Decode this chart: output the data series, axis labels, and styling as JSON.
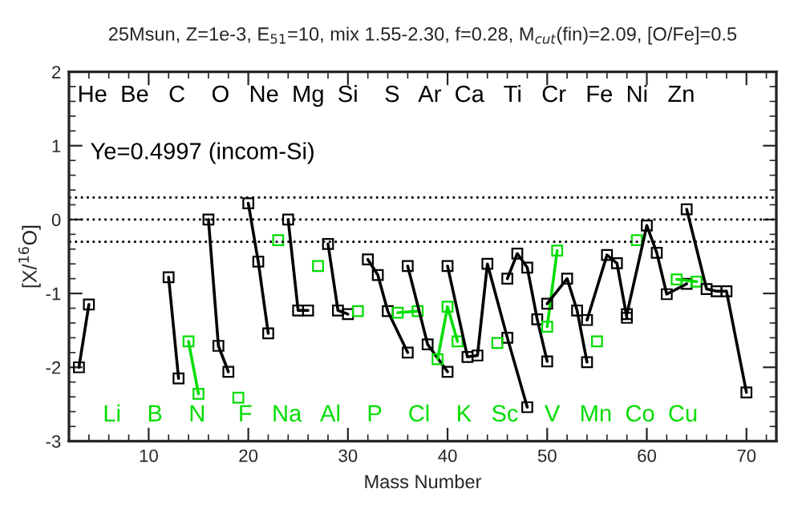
{
  "chart_data": {
    "type": "line",
    "title": "25Msun, Z=1e-3, E$_{51}$=10, mix 1.55-2.30, f=0.28, M$_{cut}$(fin)=2.09, [O/Fe]=0.5",
    "xlabel": "Mass Number",
    "ylabel": "[X/$^{16}$O]",
    "xlim": [
      2,
      73
    ],
    "xticks": [
      10,
      20,
      30,
      40,
      50,
      60,
      70
    ],
    "ylim": [
      -3,
      2
    ],
    "yticks": [
      -3,
      -2,
      -1,
      0,
      1,
      2
    ],
    "marker": "square",
    "line_style": "solid",
    "grid": false,
    "legend": false,
    "ref_lines": [
      {
        "axis": "y",
        "value": 0.3,
        "color": "#000000",
        "line_style": "dotted"
      },
      {
        "axis": "y",
        "value": 0,
        "color": "#000000",
        "line_style": "dotted"
      },
      {
        "axis": "y",
        "value": -0.3,
        "color": "#000000",
        "line_style": "dotted"
      }
    ],
    "series": [
      {
        "color": "#000000",
        "x": [
          3,
          4
        ],
        "values": [
          -2.0,
          -1.15
        ]
      },
      {
        "color": "#000000",
        "x": [
          12,
          13
        ],
        "values": [
          -0.78,
          -2.15
        ]
      },
      {
        "color": "#00dd00",
        "x": [
          14,
          15
        ],
        "values": [
          -1.65,
          -2.36
        ]
      },
      {
        "color": "#000000",
        "x": [
          16,
          17,
          18
        ],
        "values": [
          0.0,
          -1.71,
          -2.06
        ]
      },
      {
        "color": "#00dd00",
        "x": [
          19
        ],
        "values": [
          -2.41
        ]
      },
      {
        "color": "#000000",
        "x": [
          20,
          21,
          22
        ],
        "values": [
          0.22,
          -0.57,
          -1.54
        ]
      },
      {
        "color": "#00dd00",
        "x": [
          23
        ],
        "values": [
          -0.28
        ]
      },
      {
        "color": "#000000",
        "x": [
          24,
          25,
          26
        ],
        "values": [
          0.0,
          -1.23,
          -1.23
        ]
      },
      {
        "color": "#00dd00",
        "x": [
          27
        ],
        "values": [
          -0.63
        ]
      },
      {
        "color": "#000000",
        "x": [
          28,
          29,
          30
        ],
        "values": [
          -0.33,
          -1.23,
          -1.28
        ]
      },
      {
        "color": "#00dd00",
        "x": [
          31
        ],
        "values": [
          -1.24
        ]
      },
      {
        "color": "#000000",
        "x": [
          32,
          33,
          34,
          36
        ],
        "values": [
          -0.54,
          -0.75,
          -1.24,
          -1.8
        ]
      },
      {
        "color": "#00dd00",
        "x": [
          35,
          37
        ],
        "values": [
          -1.26,
          -1.24
        ]
      },
      {
        "color": "#000000",
        "x": [
          36,
          38,
          40
        ],
        "values": [
          -0.63,
          -1.69,
          -2.06
        ]
      },
      {
        "color": "#00dd00",
        "x": [
          39,
          40,
          41
        ],
        "values": [
          -1.89,
          -1.18,
          -1.65
        ]
      },
      {
        "color": "#000000",
        "x": [
          40,
          42,
          43,
          44,
          46,
          48
        ],
        "values": [
          -0.63,
          -1.86,
          -1.84,
          -0.6,
          -1.6,
          -2.54
        ]
      },
      {
        "color": "#00dd00",
        "x": [
          45
        ],
        "values": [
          -1.67
        ]
      },
      {
        "color": "#000000",
        "x": [
          46,
          47,
          48,
          49,
          50
        ],
        "values": [
          -0.8,
          -0.46,
          -0.65,
          -1.35,
          -1.92
        ]
      },
      {
        "color": "#00dd00",
        "x": [
          50,
          51
        ],
        "values": [
          -1.45,
          -0.42
        ]
      },
      {
        "color": "#000000",
        "x": [
          50,
          52,
          53,
          54
        ],
        "values": [
          -1.14,
          -0.8,
          -1.23,
          -1.93
        ]
      },
      {
        "color": "#00dd00",
        "x": [
          55
        ],
        "values": [
          -1.65
        ]
      },
      {
        "color": "#000000",
        "x": [
          54,
          56,
          57,
          58
        ],
        "values": [
          -1.36,
          -0.48,
          -0.59,
          -1.33
        ]
      },
      {
        "color": "#00dd00",
        "x": [
          59
        ],
        "values": [
          -0.28
        ]
      },
      {
        "color": "#000000",
        "x": [
          58,
          60,
          61,
          62,
          64
        ],
        "values": [
          -1.28,
          -0.08,
          -0.45,
          -1.01,
          -0.87
        ]
      },
      {
        "color": "#00dd00",
        "x": [
          63,
          65
        ],
        "values": [
          -0.81,
          -0.84
        ]
      },
      {
        "color": "#000000",
        "x": [
          64,
          66,
          67,
          68,
          70
        ],
        "values": [
          0.14,
          -0.94,
          -0.97,
          -0.97,
          -2.34
        ]
      }
    ],
    "annotations": [
      "Ye=0.4997 (incom-Si)",
      "He  Be   C    O   Ne  Mg  Si    S   Ar  Ca   Ti   Cr   Fe  Ni   Zn",
      "Li    B    N     F   Na   Al    P    Cl    K   Sc    V   Mn  Co  Cu"
    ]
  }
}
